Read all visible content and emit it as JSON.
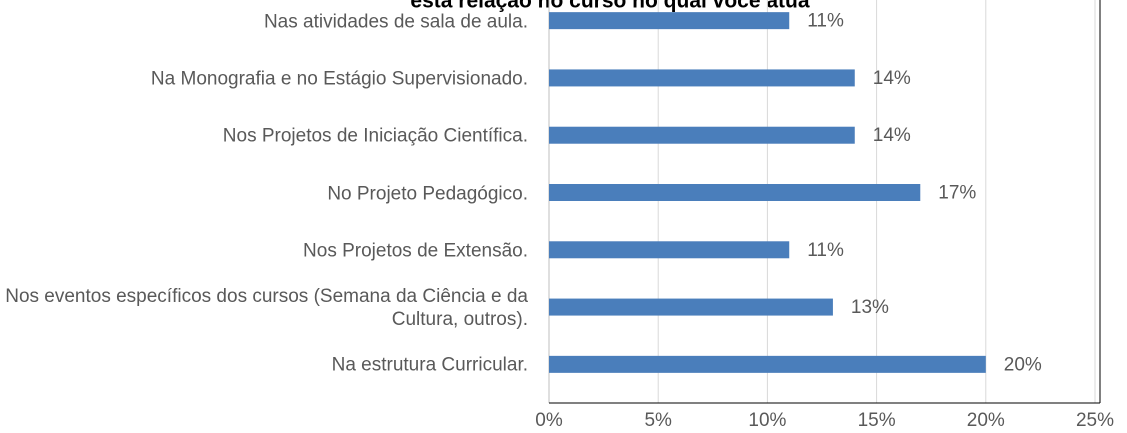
{
  "chart_data": {
    "type": "bar",
    "orientation": "horizontal",
    "title": "esta relação no curso no qual você atua",
    "categories": [
      "Nas atividades de sala de aula.",
      "Na Monografia e no Estágio Supervisionado.",
      "Nos Projetos de Iniciação Científica.",
      "No Projeto Pedagógico.",
      "Nos Projetos de Extensão.",
      "Nos eventos específicos dos cursos (Semana da Ciência e da Cultura, outros).",
      "Na estrutura Curricular."
    ],
    "values": [
      11,
      14,
      14,
      17,
      11,
      13,
      20
    ],
    "value_labels": [
      "11%",
      "14%",
      "14%",
      "17%",
      "11%",
      "13%",
      "20%"
    ],
    "color": "#4a7ebb",
    "xlim": [
      0,
      25
    ],
    "xticks": [
      {
        "value": 0,
        "label": "0%"
      },
      {
        "value": 5,
        "label": "5%"
      },
      {
        "value": 10,
        "label": "10%"
      },
      {
        "value": 15,
        "label": "15%"
      },
      {
        "value": 20,
        "label": "20%"
      },
      {
        "value": 25,
        "label": "25%"
      }
    ],
    "grid": true
  }
}
